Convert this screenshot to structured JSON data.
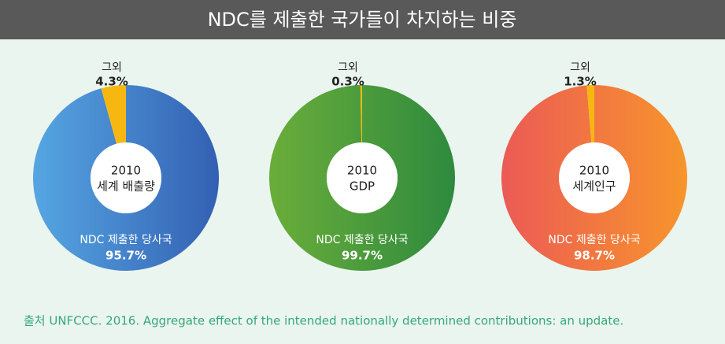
{
  "title": "NDC를 제출한 국가들이 차지하는 비중",
  "source": "출처 UNFCCC. 2016. Aggregate effect of the intended nationally determined contributions: an update.",
  "chart_data": [
    {
      "type": "donut",
      "center_label": [
        "2010",
        "세계 배출량"
      ],
      "categories": [
        "NDC 제출한 당사국",
        "그외"
      ],
      "values": [
        95.7,
        4.3
      ],
      "value_labels": [
        "95.7%",
        "4.3%"
      ],
      "colors": [
        "#3d78c8",
        "#f6b810"
      ],
      "gradient": [
        "#56a6e2",
        "#3360b3"
      ]
    },
    {
      "type": "donut",
      "center_label": [
        "2010",
        "GDP"
      ],
      "categories": [
        "NDC 제출한 당사국",
        "그외"
      ],
      "values": [
        99.7,
        0.3
      ],
      "value_labels": [
        "99.7%",
        "0.3%"
      ],
      "colors": [
        "#4a9a38",
        "#f6b810"
      ],
      "gradient": [
        "#6aad3a",
        "#2e8a3e"
      ]
    },
    {
      "type": "donut",
      "center_label": [
        "2010",
        "세계인구"
      ],
      "categories": [
        "NDC 제출한 당사국",
        "그외"
      ],
      "values": [
        98.7,
        1.3
      ],
      "value_labels": [
        "98.7%",
        "1.3%"
      ],
      "colors": [
        "#f47c40",
        "#f6b810"
      ],
      "gradient": [
        "#ec5a55",
        "#f7952c"
      ]
    }
  ]
}
